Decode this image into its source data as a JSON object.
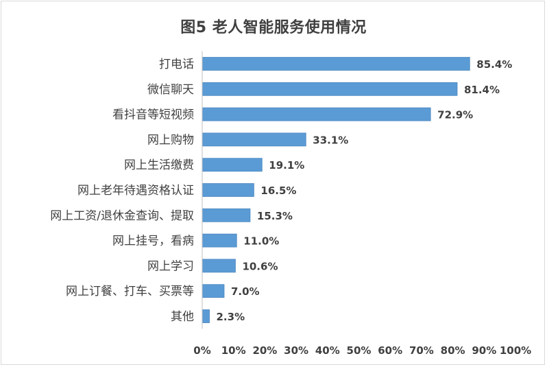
{
  "chart_data": {
    "type": "bar",
    "orientation": "horizontal",
    "title": "图5 老人智能服务使用情况",
    "categories": [
      "打电话",
      "微信聊天",
      "看抖音等短视频",
      "网上购物",
      "网上生活缴费",
      "网上老年待遇资格认证",
      "网上工资/退休金查询、提取",
      "网上挂号，看病",
      "网上学习",
      "网上订餐、打车、买票等",
      "其他"
    ],
    "values": [
      85.4,
      81.4,
      72.9,
      33.1,
      19.1,
      16.5,
      15.3,
      11.0,
      10.6,
      7.0,
      2.3
    ],
    "value_labels": [
      "85.4%",
      "81.4%",
      "72.9%",
      "33.1%",
      "19.1%",
      "16.5%",
      "15.3%",
      "11.0%",
      "10.6%",
      "7.0%",
      "2.3%"
    ],
    "xlim": [
      0,
      100
    ],
    "x_ticks": [
      0,
      10,
      20,
      30,
      40,
      50,
      60,
      70,
      80,
      90,
      100
    ],
    "x_tick_labels": [
      "0%",
      "10%",
      "20%",
      "30%",
      "40%",
      "50%",
      "60%",
      "70%",
      "80%",
      "90%",
      "100%"
    ],
    "grid": false,
    "legend": "none",
    "colors": {
      "bar_fill": "#5b9bd5",
      "bar_edge": "#4a86c0",
      "axis": "#bfbfbf",
      "text": "#404040"
    }
  }
}
